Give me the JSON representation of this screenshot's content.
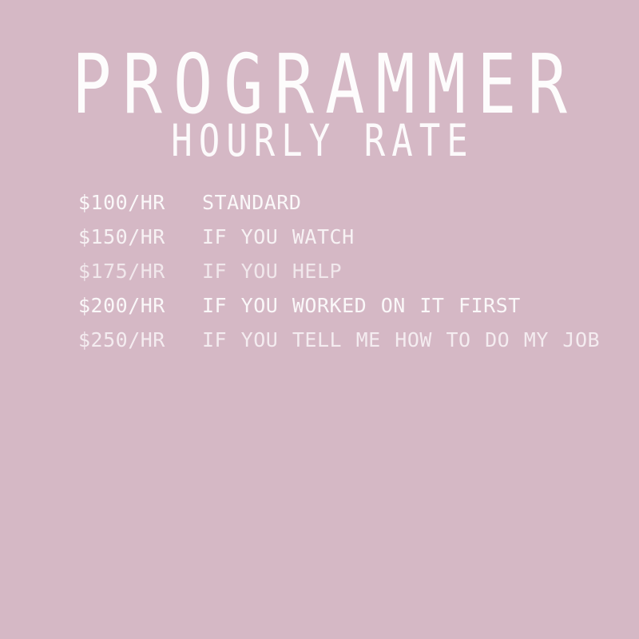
{
  "design": {
    "title": "PROGRAMMER",
    "subtitle": "HOURLY RATE",
    "colors": {
      "background": "#d5b8c5",
      "text": "#ffffff"
    },
    "rates": [
      {
        "rate": "$100/HR",
        "condition": "STANDARD"
      },
      {
        "rate": "$150/HR",
        "condition": "IF YOU WATCH"
      },
      {
        "rate": "$175/HR",
        "condition": "IF YOU HELP"
      },
      {
        "rate": "$200/HR",
        "condition": "IF YOU WORKED ON IT FIRST"
      },
      {
        "rate": "$250/HR",
        "condition": "IF YOU TELL ME HOW TO DO MY JOB"
      }
    ]
  }
}
